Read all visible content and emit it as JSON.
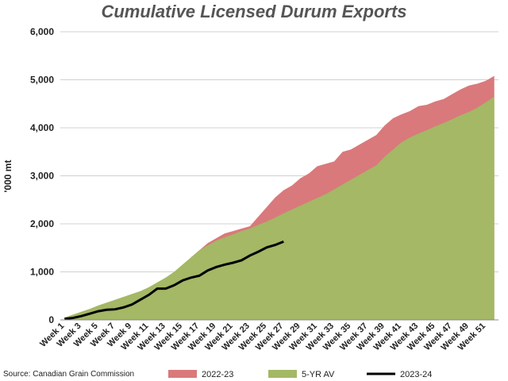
{
  "chart_data": {
    "type": "area",
    "title": "Cumulative Licensed Durum Exports",
    "y_label": "'000 mt",
    "source": "Source: Canadian Grain Commission",
    "categories": [
      "Week 1",
      null,
      "Week 3",
      null,
      "Week 5",
      null,
      "Week 7",
      null,
      "Week 9",
      null,
      "Week 11",
      null,
      "Week 13",
      null,
      "Week 15",
      null,
      "Week 17",
      null,
      "Week 19",
      null,
      "Week 21",
      null,
      "Week 23",
      null,
      "Week 25",
      null,
      "Week 27",
      null,
      "Week 29",
      null,
      "Week 31",
      null,
      "Week 33",
      null,
      "Week 35",
      null,
      "Week 37",
      null,
      "Week 39",
      null,
      "Week 41",
      null,
      "Week 43",
      null,
      "Week 45",
      null,
      "Week 47",
      null,
      "Week 49",
      null,
      "Week 51",
      null
    ],
    "series": [
      {
        "name": "2022-23",
        "color": "#d9797b",
        "kind": "area",
        "values": [
          30,
          80,
          130,
          180,
          250,
          320,
          380,
          440,
          500,
          560,
          640,
          740,
          840,
          960,
          1100,
          1300,
          1450,
          1600,
          1700,
          1800,
          1850,
          1900,
          1950,
          2150,
          2350,
          2550,
          2700,
          2800,
          2950,
          3050,
          3200,
          3250,
          3300,
          3500,
          3550,
          3650,
          3750,
          3850,
          4050,
          4200,
          4280,
          4350,
          4450,
          4480,
          4550,
          4600,
          4700,
          4800,
          4880,
          4920,
          4980,
          5080
        ]
      },
      {
        "name": "5-YR AV",
        "color": "#a4b865",
        "kind": "area",
        "values": [
          50,
          110,
          170,
          230,
          300,
          360,
          420,
          480,
          540,
          600,
          680,
          780,
          880,
          1000,
          1150,
          1300,
          1450,
          1550,
          1650,
          1720,
          1780,
          1850,
          1900,
          1980,
          2050,
          2130,
          2220,
          2300,
          2380,
          2460,
          2540,
          2620,
          2720,
          2820,
          2920,
          3020,
          3120,
          3220,
          3400,
          3550,
          3700,
          3800,
          3880,
          3950,
          4030,
          4100,
          4180,
          4260,
          4330,
          4420,
          4530,
          4650
        ]
      },
      {
        "name": "2023-24",
        "color": "#000000",
        "kind": "line",
        "values": [
          20,
          40,
          80,
          130,
          180,
          210,
          220,
          260,
          320,
          420,
          520,
          650,
          650,
          720,
          820,
          880,
          920,
          1030,
          1100,
          1150,
          1190,
          1240,
          1340,
          1420,
          1510,
          1560,
          1630,
          null,
          null,
          null,
          null,
          null,
          null,
          null,
          null,
          null,
          null,
          null,
          null,
          null,
          null,
          null,
          null,
          null,
          null,
          null,
          null,
          null,
          null,
          null,
          null,
          null
        ]
      }
    ],
    "ylim": [
      0,
      6000
    ],
    "yticks": [
      0,
      {
        "value": 1000,
        "label": "1,000"
      },
      {
        "value": 2000,
        "label": "2,000"
      },
      {
        "value": 3000,
        "label": "3,000"
      },
      {
        "value": 4000,
        "label": "4,000"
      },
      {
        "value": 5000,
        "label": "5,000"
      },
      {
        "value": 6000,
        "label": "6,000"
      }
    ],
    "grid": true
  }
}
